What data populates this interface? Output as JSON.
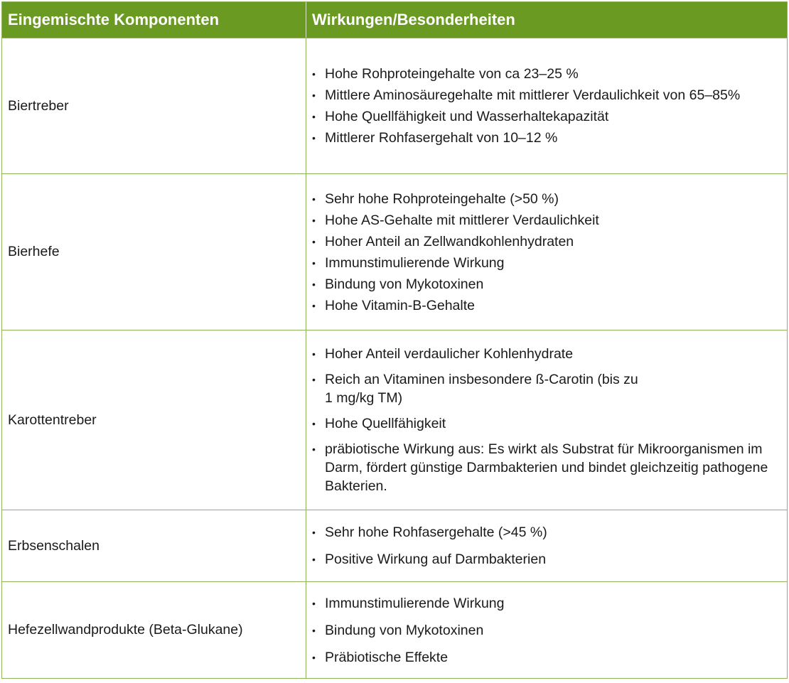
{
  "header": {
    "col1": "Eingemischte Komponenten",
    "col2": "Wirkungen/Besonderheiten"
  },
  "rows": [
    {
      "name": "Biertreber",
      "items": [
        "Hohe Rohproteingehalte von ca 23–25 %",
        "Mittlere Aminosäuregehalte mit mittlerer Verdaulichkeit von 65–85%",
        "Hohe Quellfähigkeit und Wasserhaltekapazität",
        "Mittlerer Rohfasergehalt von 10–12 %"
      ]
    },
    {
      "name": "Bierhefe",
      "items": [
        "Sehr hohe Rohproteingehalte (>50 %)",
        "Hohe AS-Gehalte mit mittlerer Verdaulichkeit",
        "Hoher Anteil an Zellwandkohlenhydraten",
        "Immunstimulierende Wirkung",
        "Bindung von Mykotoxinen",
        "Hohe Vitamin-B-Gehalte"
      ]
    },
    {
      "name": "Karottentreber",
      "items": [
        "Hoher Anteil verdaulicher Kohlenhydrate",
        "Reich an Vitaminen insbesondere ß-Carotin (bis zu 1 mg/kg TM)",
        "Hohe Quellfähigkeit",
        "präbiotische Wirkung aus: Es wirkt als Substrat für Mikroorganismen im Darm, fördert günstige Darmbakterien und bindet gleichzeitig pathogene Bakterien."
      ]
    },
    {
      "name": "Erbsenschalen",
      "items": [
        "Sehr hohe Rohfasergehalte (>45 %)",
        "Positive Wirkung auf Darmbakterien"
      ]
    },
    {
      "name": "Hefezellwandprodukte (Beta-Glukane)",
      "items": [
        "Immunstimulierende Wirkung",
        "Bindung von Mykotoxinen",
        "Präbiotische Effekte"
      ]
    }
  ]
}
